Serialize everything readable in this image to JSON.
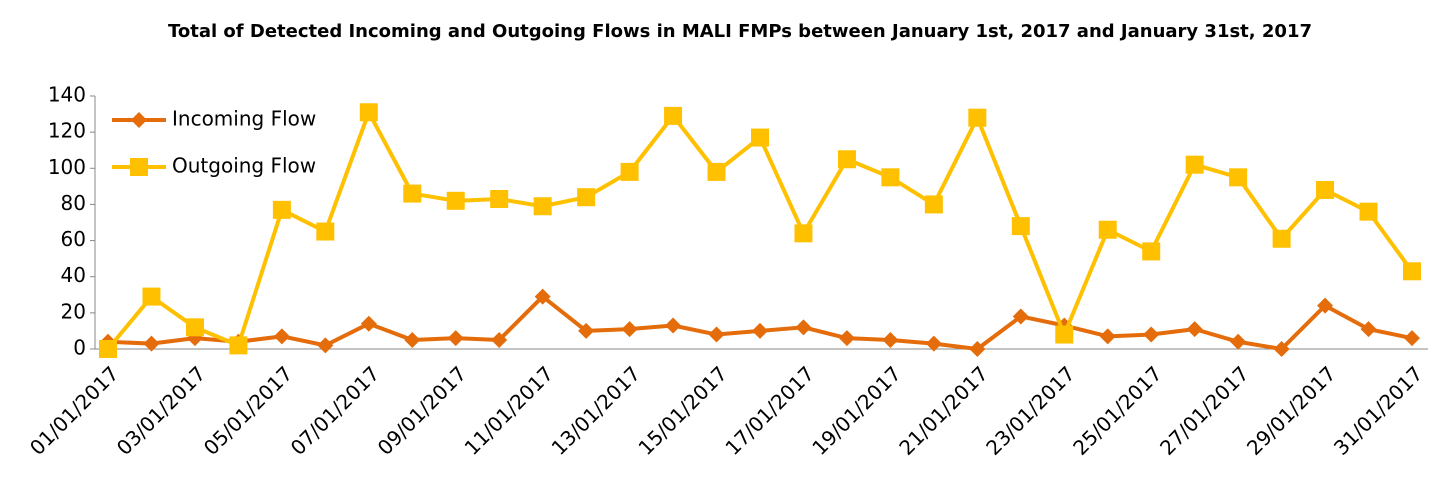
{
  "chart_data": {
    "type": "line",
    "title": "Total of Detected Incoming and Outgoing Flows in MALI FMPs between  January 1st, 2017 and January 31st, 2017",
    "categories": [
      "01/01/2017",
      null,
      "03/01/2017",
      null,
      "05/01/2017",
      null,
      "07/01/2017",
      null,
      "09/01/2017",
      null,
      "11/01/2017",
      null,
      "13/01/2017",
      null,
      "15/01/2017",
      null,
      "17/01/2017",
      null,
      "19/01/2017",
      null,
      "21/01/2017",
      null,
      "23/01/2017",
      null,
      "25/01/2017",
      null,
      "27/01/2017",
      null,
      "29/01/2017",
      null,
      "31/01/2017"
    ],
    "series": [
      {
        "name": "Incoming Flow",
        "color": "#e46c0a",
        "marker": "diamond",
        "values": [
          4,
          3,
          6,
          4,
          7,
          2,
          14,
          5,
          6,
          5,
          29,
          10,
          11,
          13,
          8,
          10,
          12,
          6,
          5,
          3,
          0,
          18,
          13,
          7,
          8,
          11,
          4,
          0,
          24,
          11,
          6
        ]
      },
      {
        "name": "Outgoing Flow",
        "color": "#ffc000",
        "marker": "square",
        "values": [
          0,
          29,
          12,
          2,
          77,
          65,
          131,
          86,
          82,
          83,
          79,
          84,
          98,
          129,
          98,
          117,
          64,
          105,
          95,
          80,
          128,
          68,
          8,
          66,
          54,
          102,
          95,
          61,
          88,
          76,
          43
        ]
      }
    ],
    "ylim": [
      0,
      140
    ],
    "yticks": [
      0,
      20,
      40,
      60,
      80,
      100,
      120,
      140
    ],
    "grid": false,
    "legend": "top-left"
  }
}
